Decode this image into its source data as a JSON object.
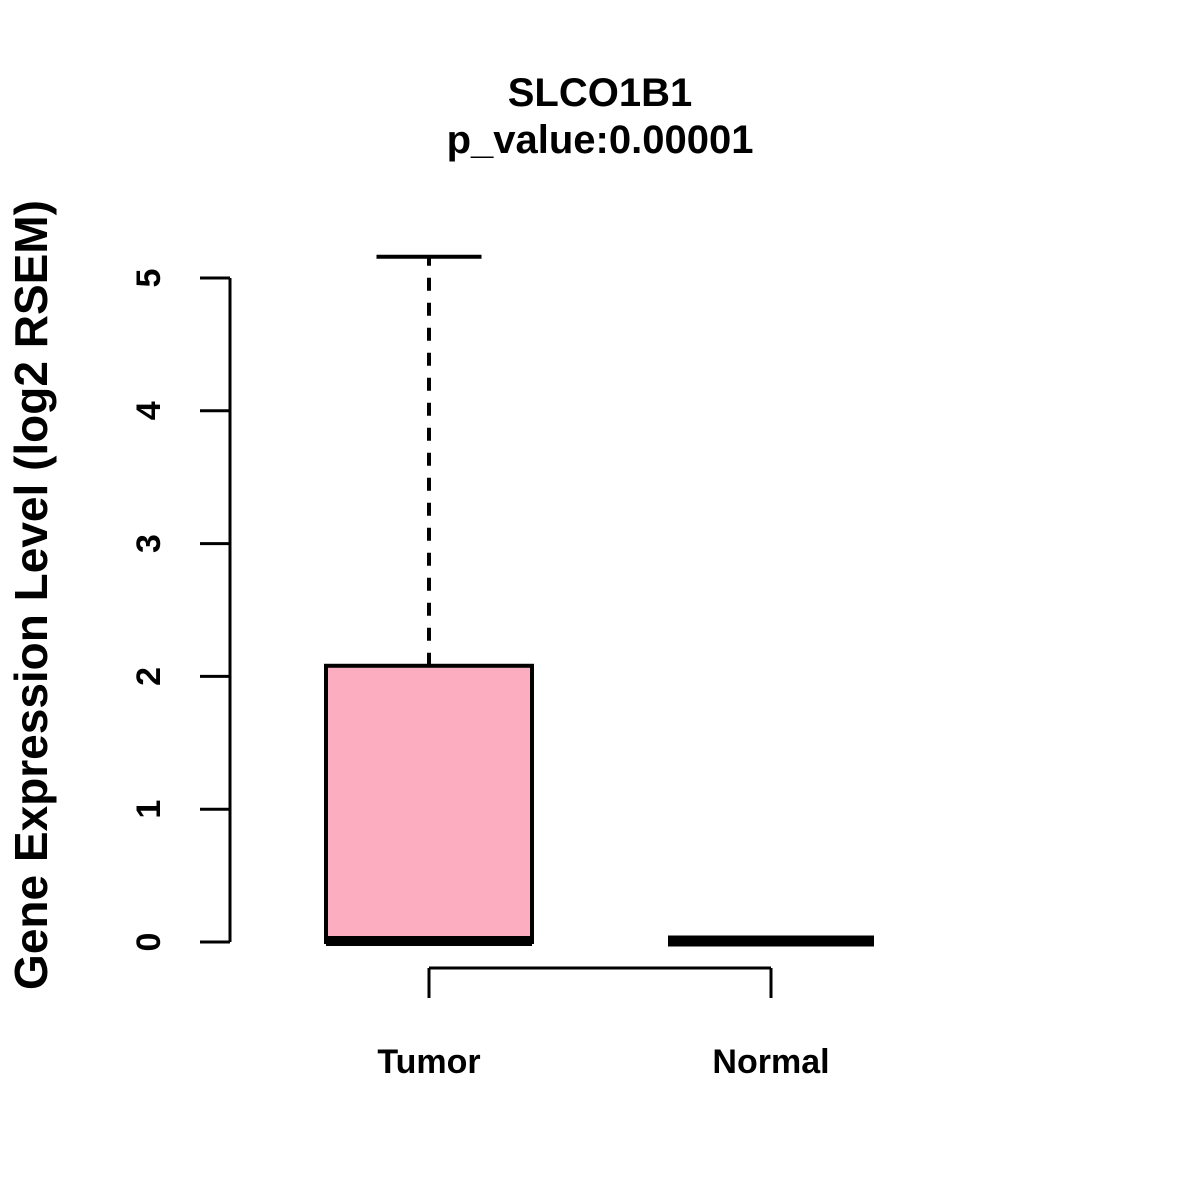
{
  "chart_data": {
    "type": "boxplot",
    "title": "SLCO1B1",
    "subtitle": "p_value:0.00001",
    "xlabel": "",
    "ylabel": "Gene Expression Level (log2 RSEM)",
    "categories": [
      "Tumor",
      "Normal"
    ],
    "y_ticks": [
      0,
      1,
      2,
      3,
      4,
      5
    ],
    "ylim": [
      0,
      5.2
    ],
    "grid": false,
    "legend": false,
    "colors": {
      "box_fill": "#FCADC0",
      "stroke": "#000000",
      "background": "#FFFFFF"
    },
    "series": [
      {
        "name": "Tumor",
        "min": 0,
        "q1": 0,
        "median": 0,
        "q3": 2.08,
        "max": 5.16,
        "whisker_style": "dashed"
      },
      {
        "name": "Normal",
        "min": 0,
        "q1": 0,
        "median": 0,
        "q3": 0,
        "max": 0,
        "whisker_style": "none"
      }
    ]
  }
}
